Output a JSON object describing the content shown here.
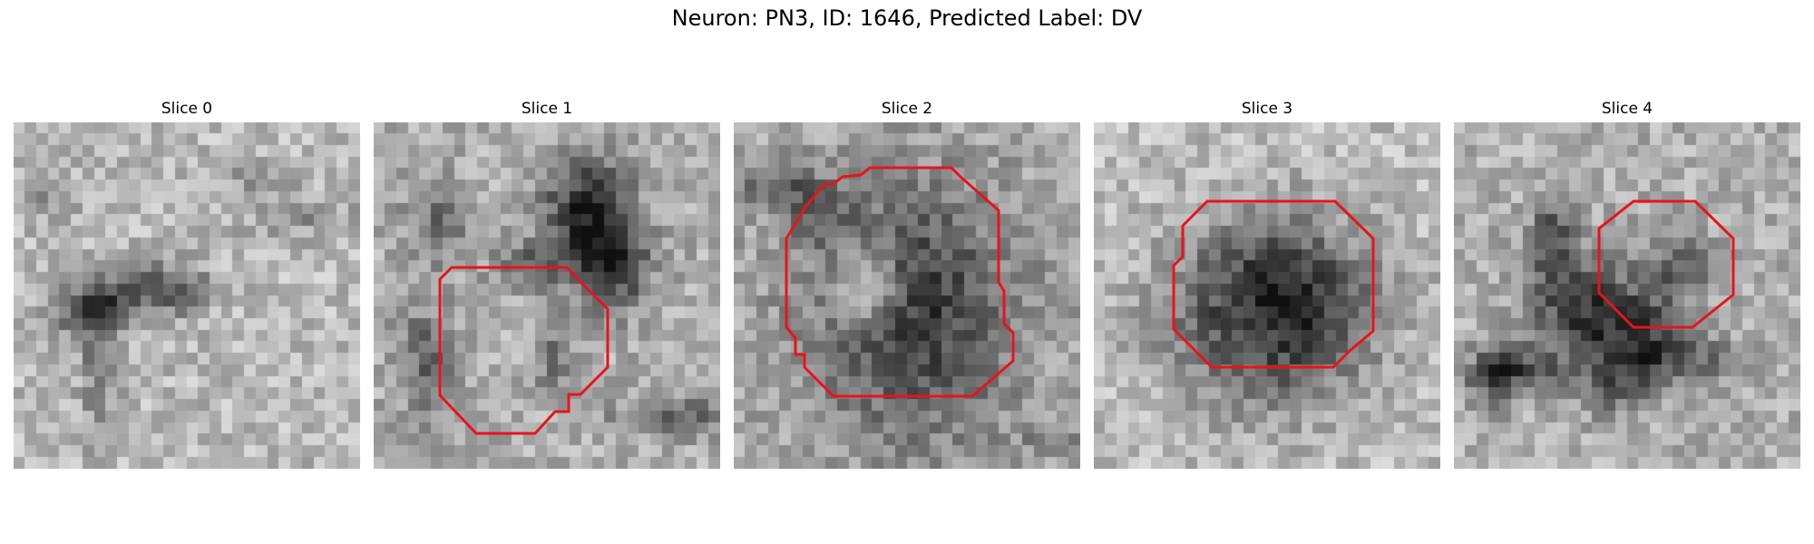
{
  "figure": {
    "title": "Neuron: PN3, ID: 1646, Predicted Label: DV"
  },
  "contour_color": "#e8141a",
  "slices": [
    {
      "title": "Slice 0"
    },
    {
      "title": "Slice 1"
    },
    {
      "title": "Slice 2"
    },
    {
      "title": "Slice 3"
    },
    {
      "title": "Slice 4"
    }
  ]
}
